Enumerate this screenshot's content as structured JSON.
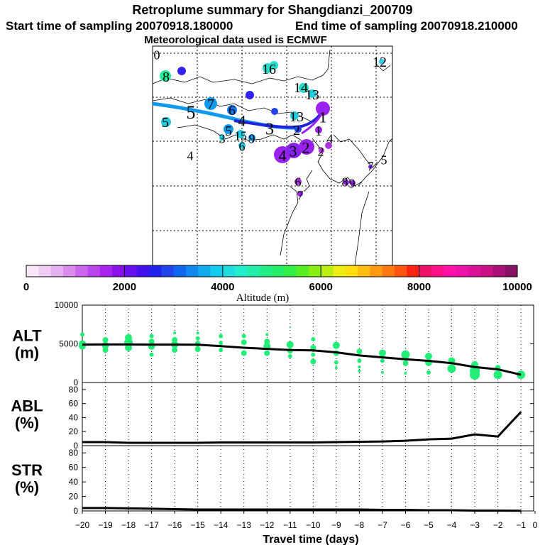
{
  "header": {
    "title": "Retroplume summary for Shangdianzi_200709",
    "start": "Start time of sampling 20070918.180000",
    "end": "End time of sampling 20070918.210000",
    "met": "Meteorological data used is ECMWF"
  },
  "map": {
    "labels": [
      {
        "t": "0",
        "x": 221,
        "y": 77,
        "s": 18,
        "c": "#000000"
      },
      {
        "t": "12",
        "x": 535,
        "y": 87,
        "s": 20,
        "c": "#000000"
      },
      {
        "t": "8",
        "x": 234,
        "y": 108,
        "s": 20,
        "c": "#000000"
      },
      {
        "t": "16",
        "x": 379,
        "y": 97,
        "s": 20,
        "c": "#000000"
      },
      {
        "t": "14",
        "x": 424,
        "y": 123,
        "s": 20,
        "c": "#000000"
      },
      {
        "t": "13",
        "x": 440,
        "y": 133,
        "s": 20,
        "c": "#000000"
      },
      {
        "t": "5",
        "x": 269,
        "y": 158,
        "s": 26,
        "c": "#000000"
      },
      {
        "t": "7",
        "x": 297,
        "y": 146,
        "s": 20,
        "c": "#000000"
      },
      {
        "t": "6",
        "x": 327,
        "y": 155,
        "s": 20,
        "c": "#000000"
      },
      {
        "t": "5",
        "x": 233,
        "y": 172,
        "s": 20,
        "c": "#000000"
      },
      {
        "t": "4",
        "x": 341,
        "y": 170,
        "s": 22,
        "c": "#000000"
      },
      {
        "t": "13",
        "x": 418,
        "y": 164,
        "s": 20,
        "c": "#000000"
      },
      {
        "t": "1",
        "x": 455,
        "y": 165,
        "s": 22,
        "c": "#000000"
      },
      {
        "t": "3",
        "x": 380,
        "y": 181,
        "s": 24,
        "c": "#000000"
      },
      {
        "t": "5",
        "x": 322,
        "y": 184,
        "s": 20,
        "c": "#000000"
      },
      {
        "t": "15",
        "x": 339,
        "y": 191,
        "s": 18,
        "c": "#000000"
      },
      {
        "t": "3",
        "x": 313,
        "y": 195,
        "s": 18,
        "c": "#000000"
      },
      {
        "t": "9",
        "x": 355,
        "y": 195,
        "s": 18,
        "c": "#000000"
      },
      {
        "t": "6",
        "x": 341,
        "y": 206,
        "s": 18,
        "c": "#000000"
      },
      {
        "t": "2",
        "x": 418,
        "y": 183,
        "s": 20,
        "c": "#000000"
      },
      {
        "t": "1",
        "x": 449,
        "y": 184,
        "s": 20,
        "c": "#000000"
      },
      {
        "t": "4",
        "x": 465,
        "y": 195,
        "s": 18,
        "c": "#000000"
      },
      {
        "t": "4",
        "x": 268,
        "y": 219,
        "s": 18,
        "c": "#000000"
      },
      {
        "t": "4",
        "x": 398,
        "y": 219,
        "s": 22,
        "c": "#000000"
      },
      {
        "t": "3",
        "x": 413,
        "y": 213,
        "s": 22,
        "c": "#000000"
      },
      {
        "t": "2",
        "x": 431,
        "y": 208,
        "s": 22,
        "c": "#000000"
      },
      {
        "t": "2",
        "x": 452,
        "y": 213,
        "s": 18,
        "c": "#000000"
      },
      {
        "t": "7",
        "x": 522,
        "y": 234,
        "s": 18,
        "c": "#000000"
      },
      {
        "t": "5",
        "x": 541,
        "y": 225,
        "s": 18,
        "c": "#000000"
      },
      {
        "t": "6",
        "x": 420,
        "y": 256,
        "s": 18,
        "c": "#000000"
      },
      {
        "t": "8",
        "x": 486,
        "y": 256,
        "s": 18,
        "c": "#000000"
      },
      {
        "t": "9",
        "x": 496,
        "y": 258,
        "s": 18,
        "c": "#000000"
      },
      {
        "t": "7",
        "x": 423,
        "y": 275,
        "s": 18,
        "c": "#000000"
      }
    ]
  },
  "colorbar": {
    "tick_labels": [
      "0",
      "2000",
      "4000",
      "6000",
      "8000",
      "10000"
    ],
    "label": "Altitude (m)"
  },
  "colors": {
    "alt_dots": "#22ee77",
    "line": "#000000",
    "path_blue": "#1199ee",
    "path_darkblue": "#2222dd",
    "path_purple": "#9922ee"
  },
  "chart_data": [
    {
      "type": "scatter",
      "panel": "ALT",
      "ylabel": "ALT (m)",
      "ylim": [
        0,
        10000
      ],
      "yticks": [
        "0",
        "5000",
        "10000"
      ],
      "xlim": [
        -20,
        -0.5
      ],
      "mean_line": {
        "x": [
          -20,
          -19,
          -18,
          -17,
          -16,
          -15,
          -14,
          -13,
          -12,
          -11,
          -10,
          -9,
          -8,
          -7,
          -6,
          -5,
          -4,
          -3,
          -2,
          -1
        ],
        "y": [
          4900,
          4920,
          4920,
          4900,
          4900,
          4880,
          4700,
          4500,
          4350,
          4200,
          4150,
          3900,
          3500,
          3250,
          3000,
          2800,
          2500,
          2000,
          1700,
          1000
        ]
      },
      "dots": [
        {
          "x": -20,
          "y": 6200,
          "r": 3
        },
        {
          "x": -20,
          "y": 5000,
          "r": 5
        },
        {
          "x": -20,
          "y": 4700,
          "r": 5
        },
        {
          "x": -19,
          "y": 5500,
          "r": 4
        },
        {
          "x": -19,
          "y": 4800,
          "r": 5
        },
        {
          "x": -19,
          "y": 4200,
          "r": 4
        },
        {
          "x": -18,
          "y": 5800,
          "r": 5
        },
        {
          "x": -18,
          "y": 5200,
          "r": 6
        },
        {
          "x": -18,
          "y": 4500,
          "r": 5
        },
        {
          "x": -17,
          "y": 6000,
          "r": 3
        },
        {
          "x": -17,
          "y": 5300,
          "r": 4
        },
        {
          "x": -17,
          "y": 4700,
          "r": 5
        },
        {
          "x": -17,
          "y": 3600,
          "r": 3
        },
        {
          "x": -16,
          "y": 6400,
          "r": 2
        },
        {
          "x": -16,
          "y": 5500,
          "r": 4
        },
        {
          "x": -16,
          "y": 4900,
          "r": 5
        },
        {
          "x": -16,
          "y": 4200,
          "r": 4
        },
        {
          "x": -15,
          "y": 6400,
          "r": 2
        },
        {
          "x": -15,
          "y": 5700,
          "r": 3
        },
        {
          "x": -15,
          "y": 5000,
          "r": 4
        },
        {
          "x": -15,
          "y": 4300,
          "r": 4
        },
        {
          "x": -14,
          "y": 6000,
          "r": 3
        },
        {
          "x": -14,
          "y": 5100,
          "r": 3
        },
        {
          "x": -14,
          "y": 4200,
          "r": 3
        },
        {
          "x": -13,
          "y": 6000,
          "r": 3
        },
        {
          "x": -13,
          "y": 5200,
          "r": 4
        },
        {
          "x": -13,
          "y": 3800,
          "r": 4
        },
        {
          "x": -12,
          "y": 6200,
          "r": 2
        },
        {
          "x": -12,
          "y": 5300,
          "r": 4
        },
        {
          "x": -12,
          "y": 4700,
          "r": 5
        },
        {
          "x": -12,
          "y": 3800,
          "r": 4
        },
        {
          "x": -11,
          "y": 7100,
          "r": 1
        },
        {
          "x": -11,
          "y": 4900,
          "r": 5
        },
        {
          "x": -11,
          "y": 4100,
          "r": 4
        },
        {
          "x": -11,
          "y": 3400,
          "r": 3
        },
        {
          "x": -10,
          "y": 5600,
          "r": 3
        },
        {
          "x": -10,
          "y": 4500,
          "r": 4
        },
        {
          "x": -10,
          "y": 3600,
          "r": 3
        },
        {
          "x": -10,
          "y": 2700,
          "r": 4
        },
        {
          "x": -9,
          "y": 4800,
          "r": 5
        },
        {
          "x": -9,
          "y": 3800,
          "r": 4
        },
        {
          "x": -9,
          "y": 2600,
          "r": 3
        },
        {
          "x": -9,
          "y": 1900,
          "r": 2
        },
        {
          "x": -8,
          "y": 4000,
          "r": 4
        },
        {
          "x": -8,
          "y": 2800,
          "r": 3
        },
        {
          "x": -8,
          "y": 2000,
          "r": 2
        },
        {
          "x": -8,
          "y": 1500,
          "r": 2
        },
        {
          "x": -7,
          "y": 3800,
          "r": 5
        },
        {
          "x": -7,
          "y": 2800,
          "r": 3
        },
        {
          "x": -7,
          "y": 1300,
          "r": 2
        },
        {
          "x": -6,
          "y": 3600,
          "r": 6
        },
        {
          "x": -6,
          "y": 2500,
          "r": 4
        },
        {
          "x": -6,
          "y": 1200,
          "r": 2
        },
        {
          "x": -5,
          "y": 3400,
          "r": 5
        },
        {
          "x": -5,
          "y": 2600,
          "r": 5
        },
        {
          "x": -5,
          "y": 1300,
          "r": 3
        },
        {
          "x": -4,
          "y": 2800,
          "r": 5
        },
        {
          "x": -4,
          "y": 1800,
          "r": 6
        },
        {
          "x": -3,
          "y": 2300,
          "r": 5
        },
        {
          "x": -3,
          "y": 1500,
          "r": 7
        },
        {
          "x": -3,
          "y": 1000,
          "r": 7
        },
        {
          "x": -2,
          "y": 1900,
          "r": 4
        },
        {
          "x": -2,
          "y": 1000,
          "r": 6
        },
        {
          "x": -1,
          "y": 1000,
          "r": 6
        }
      ]
    },
    {
      "type": "line",
      "panel": "ABL",
      "ylabel": "ABL (%)",
      "ylim": [
        0,
        90
      ],
      "yticks": [
        "0",
        "20",
        "40",
        "60",
        "80"
      ],
      "x": [
        -20,
        -19,
        -18,
        -17,
        -16,
        -15,
        -14,
        -13,
        -12,
        -11,
        -10,
        -9,
        -8,
        -7,
        -6,
        -5,
        -4,
        -3,
        -2,
        -1
      ],
      "y": [
        5,
        5,
        4,
        4,
        4,
        4,
        4.5,
        4.5,
        4.5,
        4.5,
        4.5,
        5,
        5.5,
        6,
        7,
        9,
        10,
        16,
        13,
        48
      ]
    },
    {
      "type": "line",
      "panel": "STR",
      "ylabel": "STR (%)",
      "ylim": [
        0,
        90
      ],
      "yticks": [
        "0",
        "20",
        "40",
        "60",
        "80"
      ],
      "x": [
        -20,
        -19,
        -18,
        -17,
        -16,
        -15,
        -14,
        -13,
        -12,
        -11,
        -10,
        -9,
        -8,
        -7,
        -6,
        -5,
        -4,
        -3,
        -2,
        -1
      ],
      "y": [
        4,
        4,
        3.5,
        3,
        2.5,
        2,
        2,
        2,
        2,
        2,
        2,
        2,
        2,
        1.5,
        1.5,
        1,
        1,
        0.5,
        0.5,
        0.2
      ],
      "xlabel": "Travel time (days)",
      "xticks": [
        "−20",
        "−19",
        "−18",
        "−17",
        "−16",
        "−15",
        "−14",
        "−13",
        "−12",
        "−11",
        "−10",
        "−9",
        "−8",
        "−7",
        "−6",
        "−5",
        "−4",
        "−3",
        "−2",
        "−1",
        "0"
      ]
    }
  ]
}
